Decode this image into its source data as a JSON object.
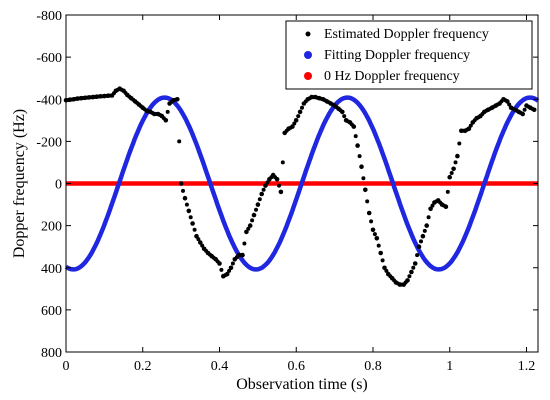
{
  "chart_data": {
    "type": "scatter",
    "title": "",
    "xlabel": "Observation time (s)",
    "ylabel": "Dopper frequency (Hz)",
    "xlim": [
      0,
      1.23
    ],
    "ylim": [
      -800,
      800
    ],
    "y_inverted": true,
    "x_ticks": [
      0,
      0.2,
      0.4,
      0.6,
      0.8,
      1,
      1.2
    ],
    "x_tick_labels": [
      "0",
      "0.2",
      "0.4",
      "0.6",
      "0.8",
      "1",
      "1.2"
    ],
    "y_ticks": [
      -800,
      -600,
      -400,
      -200,
      0,
      200,
      400,
      600,
      800
    ],
    "y_tick_labels": [
      "-800",
      "-600",
      "-400",
      "-200",
      "0",
      "200",
      "400",
      "600",
      "800"
    ],
    "grid": false,
    "legend_position": "top-right",
    "series": [
      {
        "name": "Estimated Doppler frequency",
        "style": "dots",
        "color": "#000000",
        "x": [
          0.0,
          0.01,
          0.02,
          0.03,
          0.04,
          0.05,
          0.06,
          0.07,
          0.08,
          0.09,
          0.1,
          0.11,
          0.12,
          0.13,
          0.14,
          0.15,
          0.16,
          0.17,
          0.18,
          0.19,
          0.2,
          0.21,
          0.22,
          0.23,
          0.24,
          0.25,
          0.26,
          0.27,
          0.28,
          0.29,
          0.3,
          0.31,
          0.32,
          0.33,
          0.34,
          0.35,
          0.36,
          0.37,
          0.38,
          0.39,
          0.4,
          0.41,
          0.42,
          0.43,
          0.44,
          0.45,
          0.46,
          0.47,
          0.48,
          0.49,
          0.5,
          0.51,
          0.52,
          0.53,
          0.54,
          0.55,
          0.56,
          0.57,
          0.58,
          0.59,
          0.6,
          0.61,
          0.62,
          0.63,
          0.64,
          0.65,
          0.66,
          0.67,
          0.68,
          0.69,
          0.7,
          0.71,
          0.72,
          0.73,
          0.74,
          0.75,
          0.76,
          0.77,
          0.78,
          0.79,
          0.8,
          0.81,
          0.82,
          0.83,
          0.84,
          0.85,
          0.86,
          0.87,
          0.88,
          0.89,
          0.9,
          0.91,
          0.92,
          0.93,
          0.94,
          0.95,
          0.96,
          0.97,
          0.98,
          0.99,
          1.0,
          1.01,
          1.02,
          1.03,
          1.04,
          1.05,
          1.06,
          1.07,
          1.08,
          1.09,
          1.1,
          1.11,
          1.12,
          1.13,
          1.14,
          1.15,
          1.16,
          1.17,
          1.18,
          1.19,
          1.2,
          1.21,
          1.22
        ],
        "y": [
          -395,
          -398,
          -400,
          -403,
          -405,
          -407,
          -409,
          -410,
          -412,
          -414,
          -415,
          -417,
          -418,
          -440,
          -450,
          -440,
          -420,
          -405,
          -390,
          -375,
          -360,
          -345,
          -340,
          -330,
          -330,
          -320,
          -300,
          -380,
          -395,
          -400,
          0,
          70,
          130,
          190,
          250,
          280,
          310,
          330,
          345,
          360,
          380,
          440,
          430,
          400,
          360,
          340,
          340,
          230,
          200,
          150,
          100,
          50,
          10,
          -20,
          -40,
          -20,
          40,
          -240,
          -260,
          -270,
          -300,
          -340,
          -380,
          -400,
          -410,
          -410,
          -405,
          -400,
          -390,
          -380,
          -370,
          -355,
          -340,
          -300,
          -290,
          -270,
          -180,
          -80,
          30,
          140,
          220,
          260,
          330,
          400,
          430,
          450,
          470,
          480,
          480,
          460,
          420,
          380,
          300,
          250,
          200,
          120,
          90,
          80,
          100,
          110,
          -30,
          -70,
          -130,
          -250,
          -250,
          -260,
          -290,
          -310,
          -320,
          -340,
          -350,
          -360,
          -370,
          -380,
          -400,
          -390,
          -360,
          -350,
          -340,
          -330,
          -370,
          -360,
          -350
        ]
      },
      {
        "name": "Fitting Doppler frequency",
        "style": "line",
        "color": "#1f27e0",
        "function": "sine",
        "x": [
          0.0,
          0.02,
          0.04,
          0.06,
          0.08,
          0.1,
          0.12,
          0.14,
          0.16,
          0.18,
          0.2,
          0.22,
          0.24,
          0.26,
          0.28,
          0.3,
          0.32,
          0.34,
          0.36,
          0.38,
          0.4,
          0.42,
          0.44,
          0.46,
          0.48,
          0.5,
          0.52,
          0.54,
          0.56,
          0.58,
          0.6,
          0.62,
          0.64,
          0.66,
          0.68,
          0.7,
          0.72,
          0.74,
          0.76,
          0.78,
          0.8,
          0.82,
          0.84,
          0.86,
          0.88,
          0.9,
          0.92,
          0.94,
          0.96,
          0.98,
          1.0,
          1.02,
          1.04,
          1.06,
          1.08,
          1.1,
          1.12,
          1.14,
          1.16,
          1.18,
          1.2,
          1.22,
          1.23
        ],
        "y": [
          300,
          215,
          117,
          13,
          -91,
          -187,
          -268,
          -332,
          -376,
          -397,
          -394,
          -368,
          -320,
          -253,
          -170,
          -76,
          25,
          127,
          225,
          312,
          378,
          410,
          400,
          350,
          264,
          153,
          30,
          -92,
          -202,
          -290,
          -358,
          -400,
          -412,
          -396,
          -352,
          -284,
          -198,
          -97,
          8,
          112,
          210,
          294,
          356,
          394,
          406,
          392,
          350,
          284,
          198,
          96,
          -13,
          -116,
          -216,
          -301,
          -363,
          -400,
          -410,
          -394,
          -352,
          -285,
          -200,
          -100,
          -50
        ]
      },
      {
        "name": "0 Hz Doppler frequency",
        "style": "line",
        "color": "#ff0000",
        "x": [
          0,
          1.23
        ],
        "y": [
          0,
          0
        ]
      }
    ]
  }
}
